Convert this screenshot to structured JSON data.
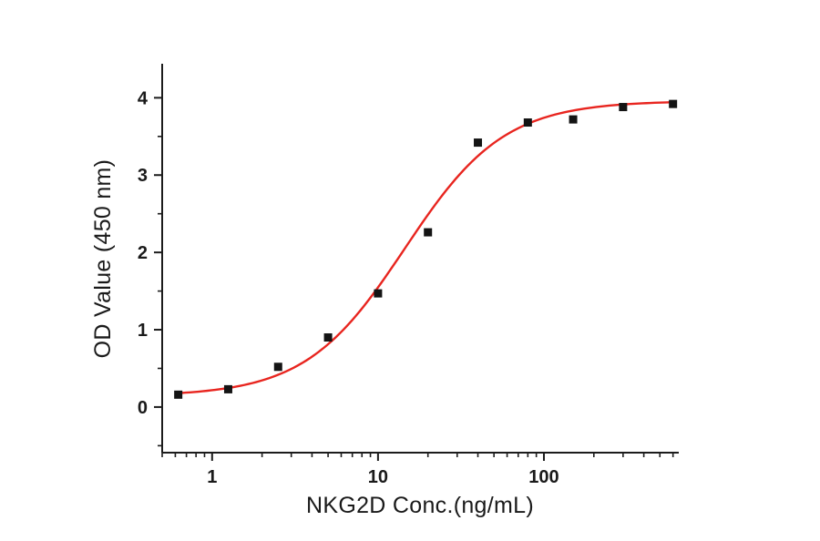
{
  "chart_data": {
    "type": "scatter",
    "title": "",
    "xlabel": "NKG2D Conc.(ng/mL)",
    "ylabel": "OD Value (450 nm)",
    "x_scale": "log",
    "grid": "off",
    "legend": "none",
    "x_ticks": [
      1,
      10,
      100
    ],
    "y_ticks": [
      0,
      1,
      2,
      3,
      4
    ],
    "x_range": [
      0.5,
      650
    ],
    "y_range": [
      -0.59,
      4.44
    ],
    "points": [
      {
        "x": 0.625,
        "y": 0.16
      },
      {
        "x": 1.25,
        "y": 0.23
      },
      {
        "x": 2.5,
        "y": 0.52
      },
      {
        "x": 5,
        "y": 0.9
      },
      {
        "x": 10,
        "y": 1.47
      },
      {
        "x": 20,
        "y": 2.26
      },
      {
        "x": 40,
        "y": 3.42
      },
      {
        "x": 80,
        "y": 3.68
      },
      {
        "x": 150,
        "y": 3.72
      },
      {
        "x": 300,
        "y": 3.88
      },
      {
        "x": 600,
        "y": 3.92
      }
    ],
    "fit_curve": {
      "model": "4PL",
      "bottom": 0.14,
      "top": 3.96,
      "ec50": 14.5,
      "hill": 1.45,
      "x_min": 0.62,
      "x_max": 620
    },
    "colors": {
      "curve": "#e8251f",
      "points": "#141414",
      "axis": "#1c1c1c"
    }
  }
}
